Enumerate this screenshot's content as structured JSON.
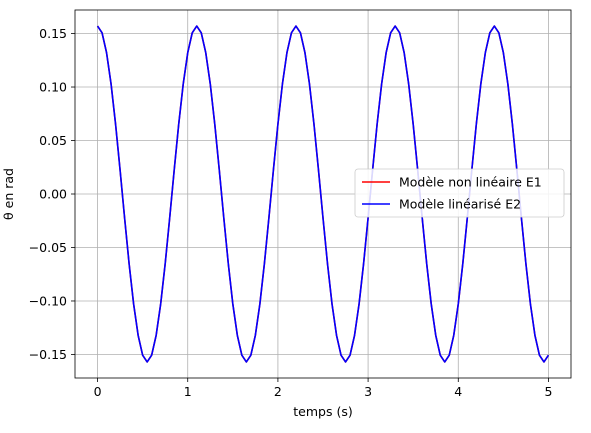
{
  "chart_data": {
    "type": "line",
    "title": "",
    "xlabel": "temps (s)",
    "ylabel": "θ en rad",
    "xlim": [
      -0.25,
      5.25
    ],
    "ylim": [
      -0.172,
      0.172
    ],
    "xticks": [
      0,
      1,
      2,
      3,
      4,
      5
    ],
    "xtick_labels": [
      "0",
      "1",
      "2",
      "3",
      "4",
      "5"
    ],
    "yticks": [
      -0.15,
      -0.1,
      -0.05,
      0.0,
      0.05,
      0.1,
      0.15
    ],
    "ytick_labels": [
      "−0.15",
      "−0.10",
      "−0.05",
      "0.00",
      "0.05",
      "0.10",
      "0.15"
    ],
    "grid": true,
    "legend_position": "center-right",
    "series": [
      {
        "name": "Modèle non linéaire E1",
        "color": "#ff0000",
        "amplitude": 0.157,
        "period": 1.1,
        "t_start": 0,
        "t_end": 5,
        "samples": 101
      },
      {
        "name": "Modèle linéarisé E2",
        "color": "#0000ff",
        "amplitude": 0.157,
        "period": 1.1,
        "t_start": 0,
        "t_end": 5,
        "samples": 101
      }
    ]
  }
}
